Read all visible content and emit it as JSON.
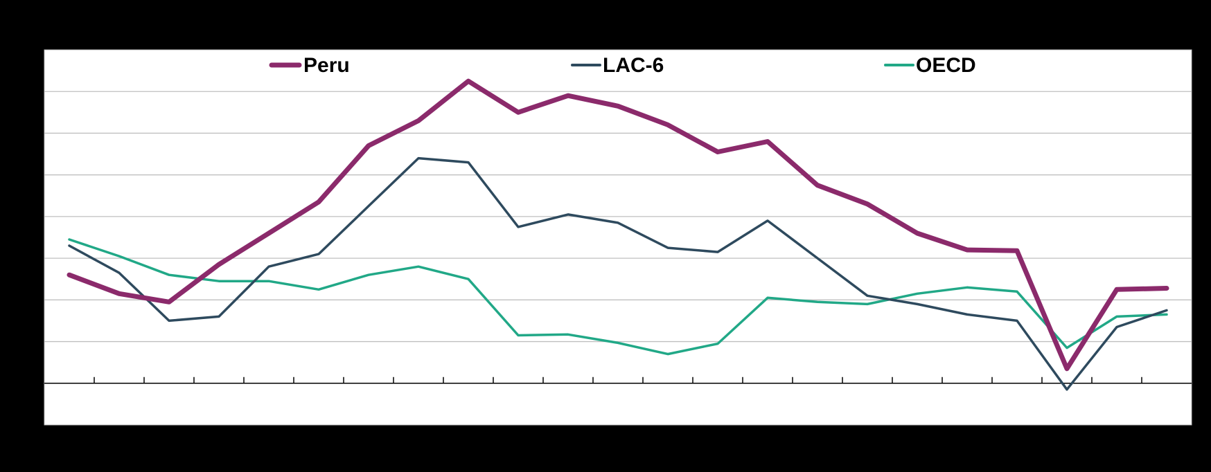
{
  "chart_data": {
    "type": "line",
    "title": "",
    "xlabel": "",
    "ylabel": "",
    "x_count": 23,
    "ylim": [
      -1,
      8
    ],
    "grid": true,
    "legend_position": "top",
    "series": [
      {
        "name": "Peru",
        "color": "#8B2A6B",
        "values": [
          2.6,
          2.15,
          1.95,
          2.85,
          3.6,
          4.35,
          5.7,
          6.3,
          7.25,
          6.5,
          6.9,
          6.65,
          6.2,
          5.55,
          5.8,
          4.75,
          4.3,
          3.6,
          3.2,
          3.18,
          0.35,
          2.25,
          2.28
        ]
      },
      {
        "name": "LAC-6",
        "color": "#2E4A5E",
        "values": [
          3.3,
          2.65,
          1.5,
          1.6,
          2.8,
          3.1,
          4.25,
          5.4,
          5.3,
          3.75,
          4.05,
          3.85,
          3.25,
          3.15,
          3.9,
          3.0,
          2.1,
          1.9,
          1.65,
          1.5,
          -0.15,
          1.35,
          1.75
        ]
      },
      {
        "name": "OECD",
        "color": "#21A887",
        "values": [
          3.45,
          3.05,
          2.6,
          2.45,
          2.45,
          2.25,
          2.6,
          2.8,
          2.5,
          1.15,
          1.17,
          0.97,
          0.7,
          0.95,
          2.05,
          1.95,
          1.9,
          2.15,
          2.3,
          2.2,
          0.85,
          1.6,
          1.65
        ]
      }
    ]
  }
}
